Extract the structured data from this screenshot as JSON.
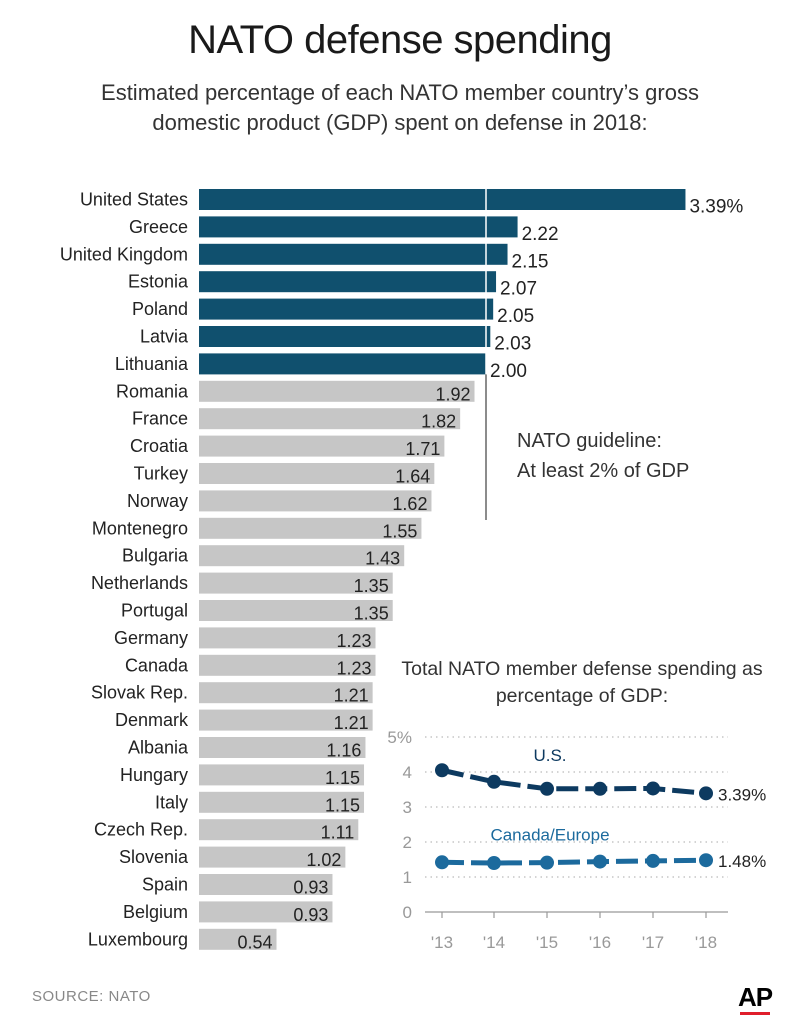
{
  "title": "NATO defense spending",
  "subtitle": "Estimated percentage of each NATO member country’s gross domestic product (GDP) spent on defense in 2018:",
  "guideline": {
    "line1": "NATO guideline:",
    "line2": "At least 2% of GDP",
    "value": 2.0
  },
  "source": "SOURCE: NATO",
  "logo": "AP",
  "colors": {
    "above_guideline": "#10506e",
    "below_guideline": "#c6c6c6",
    "line_series": "#0d3a60",
    "line_series_2": "#1c6a9d",
    "text": "#333333"
  },
  "chart_data": [
    {
      "type": "bar",
      "orientation": "horizontal",
      "categories": [
        "United States",
        "Greece",
        "United Kingdom",
        "Estonia",
        "Poland",
        "Latvia",
        "Lithuania",
        "Romania",
        "France",
        "Croatia",
        "Turkey",
        "Norway",
        "Montenegro",
        "Bulgaria",
        "Netherlands",
        "Portugal",
        "Germany",
        "Canada",
        "Slovak Rep.",
        "Denmark",
        "Albania",
        "Hungary",
        "Italy",
        "Czech Rep.",
        "Slovenia",
        "Spain",
        "Belgium",
        "Luxembourg"
      ],
      "values": [
        3.39,
        2.22,
        2.15,
        2.07,
        2.05,
        2.03,
        2.0,
        1.92,
        1.82,
        1.71,
        1.64,
        1.62,
        1.55,
        1.43,
        1.35,
        1.35,
        1.23,
        1.23,
        1.21,
        1.21,
        1.16,
        1.15,
        1.15,
        1.11,
        1.02,
        0.93,
        0.93,
        0.54
      ],
      "labels": [
        "3.39%",
        "2.22",
        "2.15",
        "2.07",
        "2.05",
        "2.03",
        "2.00",
        "1.92",
        "1.82",
        "1.71",
        "1.64",
        "1.62",
        "1.55",
        "1.43",
        "1.35",
        "1.35",
        "1.23",
        "1.23",
        "1.21",
        "1.21",
        "1.16",
        "1.15",
        "1.15",
        "1.11",
        "1.02",
        "0.93",
        "0.93",
        "0.54"
      ],
      "reference_line": 2.0
    },
    {
      "type": "line",
      "title": "Total NATO member defense spending as percentage of GDP:",
      "x": [
        "'13",
        "'14",
        "'15",
        "'16",
        "'17",
        "'18"
      ],
      "ylim": [
        0,
        5
      ],
      "yticks": [
        "0",
        "1",
        "2",
        "3",
        "4",
        "5%"
      ],
      "grid": true,
      "series": [
        {
          "name": "U.S.",
          "values": [
            4.05,
            3.72,
            3.52,
            3.52,
            3.53,
            3.39
          ],
          "end_label": "3.39%"
        },
        {
          "name": "Canada/Europe",
          "values": [
            1.42,
            1.4,
            1.41,
            1.44,
            1.46,
            1.48
          ],
          "end_label": "1.48%"
        }
      ]
    }
  ]
}
